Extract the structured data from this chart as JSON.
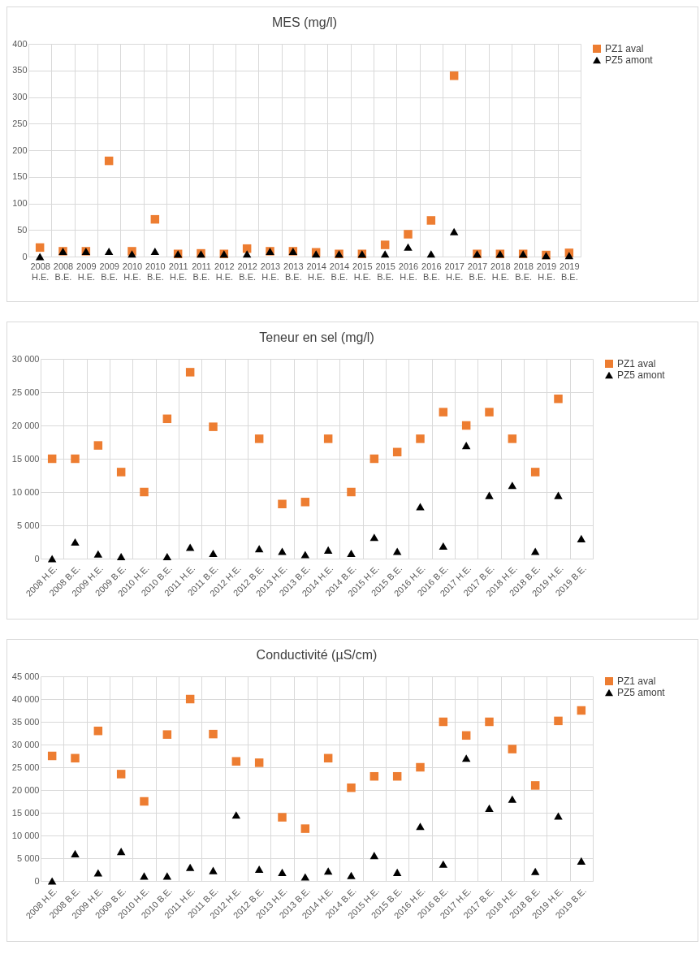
{
  "chart_data": [
    {
      "type": "scatter",
      "title": "MES (mg/l)",
      "categories": [
        "2008 H.E.",
        "2008 B.E.",
        "2009 H.E.",
        "2009 B.E.",
        "2010 H.E.",
        "2010 B.E.",
        "2011 H.E.",
        "2011 B.E.",
        "2012 H.E.",
        "2012 B.E.",
        "2013 H.E.",
        "2013 B.E.",
        "2014 H.E.",
        "2014 B.E.",
        "2015 H.E.",
        "2015 B.E.",
        "2016 H.E.",
        "2016 B.E.",
        "2017 H.E.",
        "2017 B.E.",
        "2018 H.E.",
        "2018 B.E.",
        "2019 H.E.",
        "2019 B.E."
      ],
      "series": [
        {
          "name": "PZ1 aval",
          "color": "#ed7d31",
          "marker": "square",
          "values": [
            17,
            10,
            10,
            180,
            10,
            70,
            5,
            6,
            5,
            15,
            10,
            10,
            8,
            5,
            5,
            22,
            42,
            68,
            340,
            5,
            5,
            5,
            3,
            7
          ]
        },
        {
          "name": "PZ5 amont",
          "color": "#000000",
          "marker": "triangle",
          "values": [
            0,
            10,
            10,
            10,
            5,
            10,
            5,
            5,
            5,
            5,
            10,
            10,
            5,
            5,
            5,
            5,
            18,
            5,
            47,
            5,
            5,
            5,
            2,
            2
          ]
        }
      ],
      "ylim": [
        0,
        400
      ],
      "yticks": [
        0,
        50,
        100,
        150,
        200,
        250,
        300,
        350,
        400
      ],
      "grid": true,
      "legend": "right"
    },
    {
      "type": "scatter",
      "title": "Teneur en sel (mg/l)",
      "categories": [
        "2008 H.E.",
        "2008 B.E.",
        "2009 H.E.",
        "2009 B.E.",
        "2010 H.E.",
        "2010 B.E.",
        "2011 H.E.",
        "2011 B.E.",
        "2012 H.E.",
        "2012 B.E.",
        "2013 H.E.",
        "2013 B.E.",
        "2014 H.E.",
        "2014 B.E.",
        "2015 H.E.",
        "2015 B.E.",
        "2016 H.E.",
        "2016 B.E.",
        "2017 H.E.",
        "2017 B.E.",
        "2018 H.E.",
        "2018 B.E.",
        "2019 H.E.",
        "2019 B.E."
      ],
      "series": [
        {
          "name": "PZ1 aval",
          "color": "#ed7d31",
          "marker": "square",
          "values": [
            15000,
            15000,
            17000,
            13000,
            10000,
            21000,
            28000,
            19800,
            null,
            18000,
            8200,
            8500,
            18000,
            10000,
            15000,
            16000,
            18000,
            22000,
            20000,
            22000,
            18000,
            13000,
            24000,
            null
          ]
        },
        {
          "name": "PZ5 amont",
          "color": "#000000",
          "marker": "triangle",
          "values": [
            0,
            2500,
            700,
            300,
            null,
            300,
            1700,
            800,
            null,
            1500,
            1100,
            600,
            1300,
            800,
            3200,
            1100,
            7800,
            1900,
            17000,
            9500,
            11000,
            1100,
            9500,
            3000
          ]
        }
      ],
      "ylim": [
        0,
        30000
      ],
      "yticks": [
        0,
        {
          "value": 5000,
          "label": "5 000"
        },
        {
          "value": 10000,
          "label": "10 000"
        },
        {
          "value": 15000,
          "label": "15 000"
        },
        {
          "value": 20000,
          "label": "20 000"
        },
        {
          "value": 25000,
          "label": "25 000"
        },
        {
          "value": 30000,
          "label": "30 000"
        }
      ],
      "grid": true,
      "legend": "right"
    },
    {
      "type": "scatter",
      "title": "Conductivité (µS/cm)",
      "categories": [
        "2008 H.E.",
        "2008 B.E.",
        "2009 H.E.",
        "2009 B.E.",
        "2010 H.E.",
        "2010 B.E.",
        "2011 H.E.",
        "2011 B.E.",
        "2012 H.E.",
        "2012 B.E.",
        "2013 H.E.",
        "2013 B.E.",
        "2014 H.E.",
        "2014 B.E.",
        "2015 H.E.",
        "2015 B.E.",
        "2016 H.E.",
        "2016 B.E.",
        "2017 H.E.",
        "2017 B.E.",
        "2018 H.E.",
        "2018 B.E.",
        "2019 H.E.",
        "2019 B.E."
      ],
      "series": [
        {
          "name": "PZ1 aval",
          "color": "#ed7d31",
          "marker": "square",
          "values": [
            27500,
            27000,
            33000,
            23500,
            17500,
            32200,
            40000,
            32300,
            26300,
            26000,
            14000,
            11500,
            27000,
            20500,
            23000,
            23000,
            25000,
            35000,
            32000,
            35000,
            29000,
            21000,
            35200,
            37500
          ]
        },
        {
          "name": "PZ5 amont",
          "color": "#000000",
          "marker": "triangle",
          "values": [
            0,
            6000,
            1800,
            6500,
            1100,
            1100,
            3000,
            2300,
            14500,
            2600,
            1900,
            900,
            2200,
            1200,
            5600,
            1900,
            12000,
            3700,
            27000,
            16000,
            18000,
            2100,
            14300,
            4400
          ]
        }
      ],
      "ylim": [
        0,
        45000
      ],
      "yticks": [
        0,
        {
          "value": 5000,
          "label": "5 000"
        },
        {
          "value": 10000,
          "label": "10 000"
        },
        {
          "value": 15000,
          "label": "15 000"
        },
        {
          "value": 20000,
          "label": "20 000"
        },
        {
          "value": 25000,
          "label": "25 000"
        },
        {
          "value": 30000,
          "label": "30 000"
        },
        {
          "value": 35000,
          "label": "35 000"
        },
        {
          "value": 40000,
          "label": "40 000"
        },
        {
          "value": 45000,
          "label": "45 000"
        }
      ],
      "grid": true,
      "legend": "right"
    }
  ]
}
